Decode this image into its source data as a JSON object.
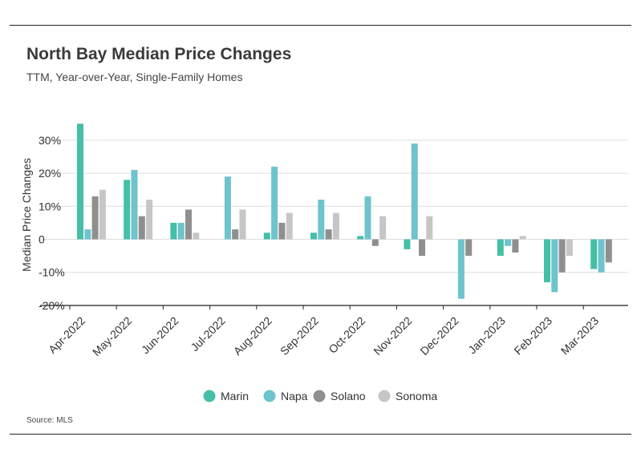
{
  "header": {
    "title": "North Bay Median Price Changes",
    "subtitle": "TTM, Year-over-Year, Single-Family Homes"
  },
  "footer": {
    "source": "Source: MLS"
  },
  "chart_data": {
    "type": "bar",
    "title": "North Bay Median Price Changes",
    "subtitle": "TTM, Year-over-Year, Single-Family Homes",
    "xlabel": "",
    "ylabel": "Median Price Changes",
    "ylim": [
      -22,
      35
    ],
    "yticks": [
      30,
      20,
      10,
      0,
      -10,
      -20
    ],
    "ytick_labels": [
      "30%",
      "20%",
      "10%",
      "0",
      "-10%",
      "-20%"
    ],
    "grid": true,
    "legend_position": "bottom",
    "categories": [
      "Apr-2022",
      "May-2022",
      "Jun-2022",
      "Jul-2022",
      "Aug-2022",
      "Sep-2022",
      "Oct-2022",
      "Nov-2022",
      "Dec-2022",
      "Jan-2023",
      "Feb-2023",
      "Mar-2023"
    ],
    "series": [
      {
        "name": "Marin",
        "color": "#45bfa6",
        "values": [
          35,
          18,
          5,
          0,
          2,
          2,
          1,
          -3,
          0,
          -5,
          -13,
          -9
        ]
      },
      {
        "name": "Napa",
        "color": "#6fc3cc",
        "values": [
          3,
          21,
          5,
          19,
          22,
          12,
          13,
          29,
          -18,
          -2,
          -16,
          -10
        ]
      },
      {
        "name": "Solano",
        "color": "#8f8f8f",
        "values": [
          13,
          7,
          9,
          3,
          5,
          3,
          -2,
          -5,
          -5,
          -4,
          -10,
          -7
        ]
      },
      {
        "name": "Sonoma",
        "color": "#c6c6c6",
        "values": [
          15,
          12,
          2,
          9,
          8,
          8,
          7,
          7,
          0,
          1,
          -5,
          0
        ]
      }
    ]
  }
}
